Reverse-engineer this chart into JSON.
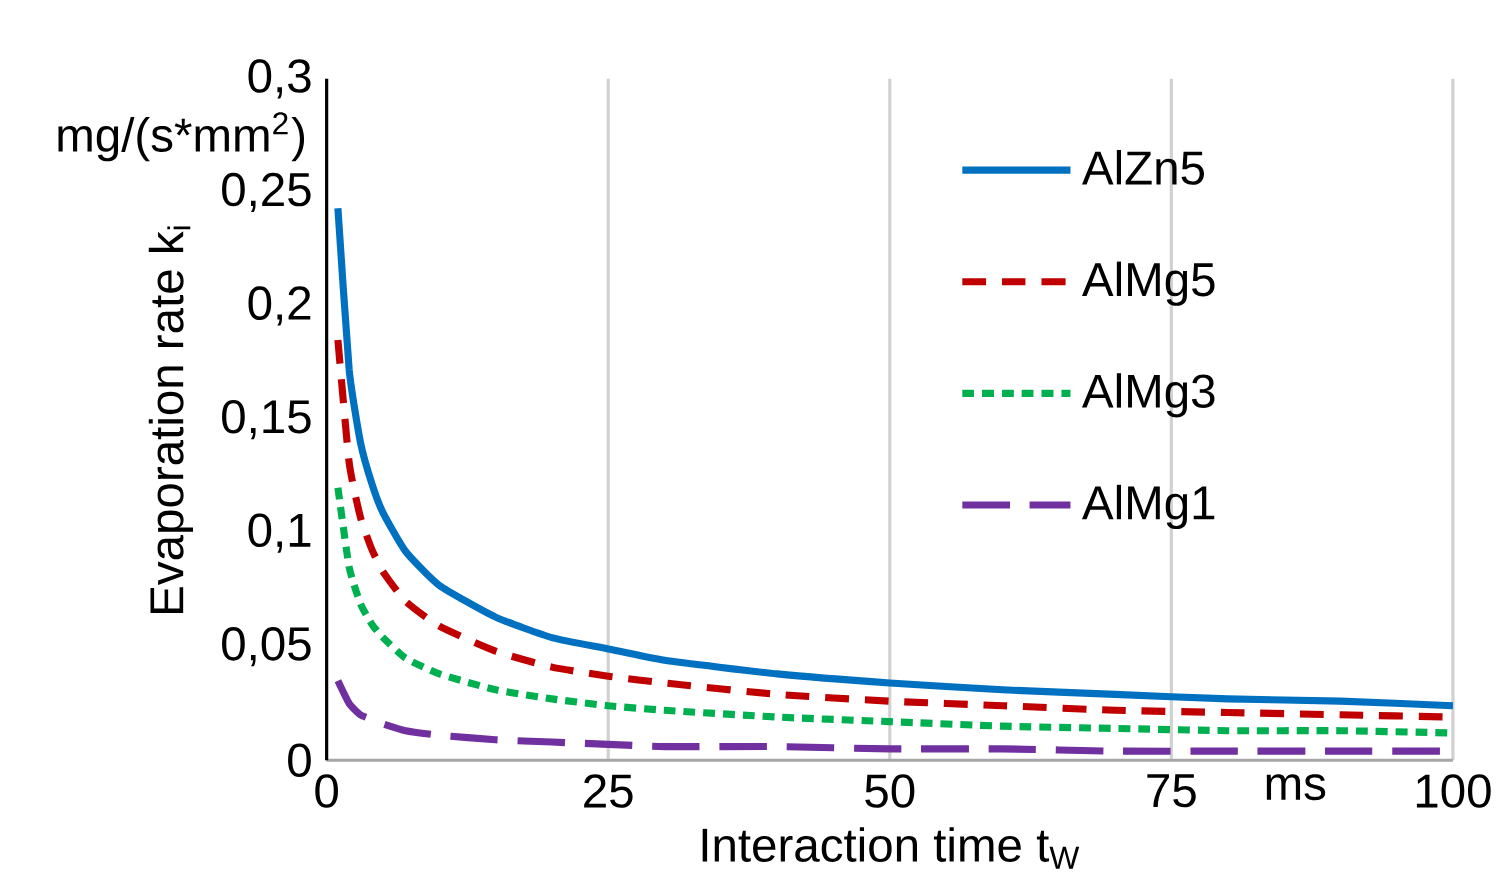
{
  "chart_data": {
    "type": "line",
    "xlabel": "Interaction time t$_{W}$",
    "ylabel": "Evaporation rate k$_{i}$",
    "annotations": [
      "mg/(s*mm$^{2}$)",
      "ms"
    ],
    "x": [
      1,
      2,
      3,
      4,
      5,
      7,
      10,
      15,
      20,
      25,
      30,
      40,
      50,
      60,
      70,
      80,
      90,
      100
    ],
    "series": [
      {
        "name": "AlZn5",
        "color": "#0070c0",
        "line_style": "solid",
        "values": [
          0.243,
          0.172,
          0.14,
          0.122,
          0.109,
          0.092,
          0.077,
          0.063,
          0.054,
          0.049,
          0.044,
          0.038,
          0.034,
          0.031,
          0.029,
          0.027,
          0.026,
          0.024
        ]
      },
      {
        "name": "AlMg5",
        "color": "#c00000",
        "line_style": "dashed",
        "values": [
          0.185,
          0.131,
          0.107,
          0.093,
          0.083,
          0.07,
          0.059,
          0.048,
          0.041,
          0.037,
          0.034,
          0.029,
          0.026,
          0.024,
          0.022,
          0.021,
          0.02,
          0.019
        ]
      },
      {
        "name": "AlMg3",
        "color": "#00b050",
        "line_style": "dotted",
        "values": [
          0.12,
          0.085,
          0.069,
          0.06,
          0.054,
          0.045,
          0.038,
          0.031,
          0.027,
          0.024,
          0.022,
          0.019,
          0.017,
          0.015,
          0.014,
          0.013,
          0.013,
          0.012
        ]
      },
      {
        "name": "AlMg1",
        "color": "#7030a0",
        "line_style": "long dashed",
        "values": [
          0.035,
          0.025,
          0.02,
          0.018,
          0.016,
          0.013,
          0.011,
          0.009,
          0.008,
          0.007,
          0.006,
          0.006,
          0.005,
          0.005,
          0.004,
          0.004,
          0.004,
          0.004
        ]
      }
    ],
    "xlim": [
      0,
      100
    ],
    "xticks": [
      0,
      25,
      50,
      75,
      100
    ],
    "ylim": [
      0,
      0.3
    ],
    "yticks": [
      {
        "value": 0,
        "label": "0"
      },
      {
        "value": 0.05,
        "label": "0,05"
      },
      {
        "value": 0.1,
        "label": "0,1"
      },
      {
        "value": 0.15,
        "label": "0,15"
      },
      {
        "value": 0.2,
        "label": "0,2"
      },
      {
        "value": 0.25,
        "label": "0,25"
      },
      {
        "value": 0.3,
        "label": "0,3"
      }
    ],
    "grid": "x",
    "legend": "top right",
    "marker": "none"
  }
}
